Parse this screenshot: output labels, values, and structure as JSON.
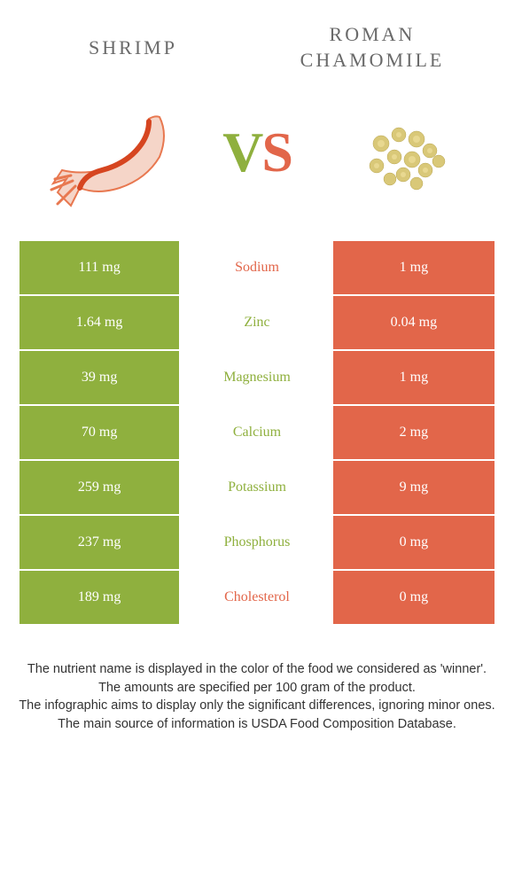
{
  "header": {
    "left_title": "Shrimp",
    "right_title": "Roman chamomile"
  },
  "vs": {
    "v": "V",
    "s": "S"
  },
  "colors": {
    "green": "#8fb03e",
    "orange": "#e2664a",
    "white": "#ffffff",
    "text": "#333333",
    "header_text": "#6a6a6a"
  },
  "nutrients": [
    {
      "name": "Sodium",
      "left": "111 mg",
      "right": "1 mg",
      "winner": "orange"
    },
    {
      "name": "Zinc",
      "left": "1.64 mg",
      "right": "0.04 mg",
      "winner": "green"
    },
    {
      "name": "Magnesium",
      "left": "39 mg",
      "right": "1 mg",
      "winner": "green"
    },
    {
      "name": "Calcium",
      "left": "70 mg",
      "right": "2 mg",
      "winner": "green"
    },
    {
      "name": "Potassium",
      "left": "259 mg",
      "right": "9 mg",
      "winner": "green"
    },
    {
      "name": "Phosphorus",
      "left": "237 mg",
      "right": "0 mg",
      "winner": "green"
    },
    {
      "name": "Cholesterol",
      "left": "189 mg",
      "right": "0 mg",
      "winner": "orange"
    }
  ],
  "footer": {
    "line1": "The nutrient name is displayed in the color of the food we considered as 'winner'.",
    "line2": "The amounts are specified per 100 gram of the product.",
    "line3": "The infographic aims to display only the significant differences, ignoring minor ones.",
    "line4": "The main source of information is USDA Food Composition Database."
  }
}
